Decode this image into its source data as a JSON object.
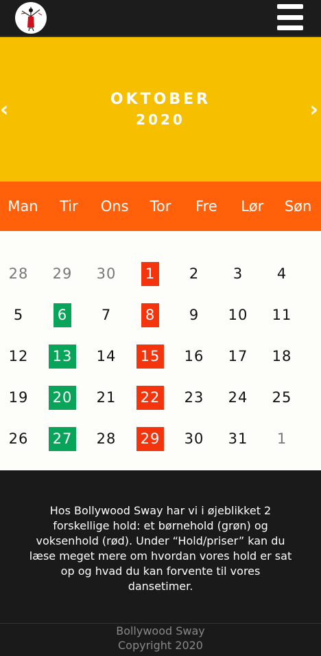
{
  "header": {
    "logo_name": "dancer-logo",
    "menu_name": "hamburger-icon"
  },
  "calendar": {
    "month": "OKTOBER",
    "year": "2020",
    "prev_label": "‹",
    "next_label": "›",
    "weekdays": [
      "Man",
      "Tir",
      "Ons",
      "Tor",
      "Fre",
      "Lør",
      "Søn"
    ],
    "weeks": [
      [
        "28",
        "29",
        "30",
        "1",
        "2",
        "3",
        "4"
      ],
      [
        "5",
        "6",
        "7",
        "8",
        "9",
        "10",
        "11"
      ],
      [
        "12",
        "13",
        "14",
        "15",
        "16",
        "17",
        "18"
      ],
      [
        "19",
        "20",
        "21",
        "22",
        "23",
        "24",
        "25"
      ],
      [
        "26",
        "27",
        "28",
        "29",
        "30",
        "31",
        "1"
      ]
    ],
    "week_classes": [
      [
        "muted",
        "muted",
        "muted",
        "red",
        "",
        "",
        ""
      ],
      [
        "",
        "green",
        "",
        "red",
        "",
        "",
        ""
      ],
      [
        "",
        "green",
        "",
        "red",
        "",
        "",
        ""
      ],
      [
        "",
        "green",
        "",
        "red",
        "",
        "",
        ""
      ],
      [
        "",
        "green",
        "",
        "red",
        "",
        "",
        "muted"
      ]
    ],
    "colors": {
      "green": "#08a45a",
      "red": "#f4340c",
      "header": "#f6c000",
      "weekday_bar": "#ff6009"
    }
  },
  "info": {
    "text": "Hos Bollywood Sway har vi i øjeblikket 2 forskellige hold: et børnehold (grøn) og voksenhold (rød). Under “Hold/priser” kan du læse meget mere om hvordan vores hold er sat op og hvad du kan forvente til vores dansetimer."
  },
  "footer": {
    "line1": "Bollywood Sway",
    "line2": "Copyright 2020"
  }
}
